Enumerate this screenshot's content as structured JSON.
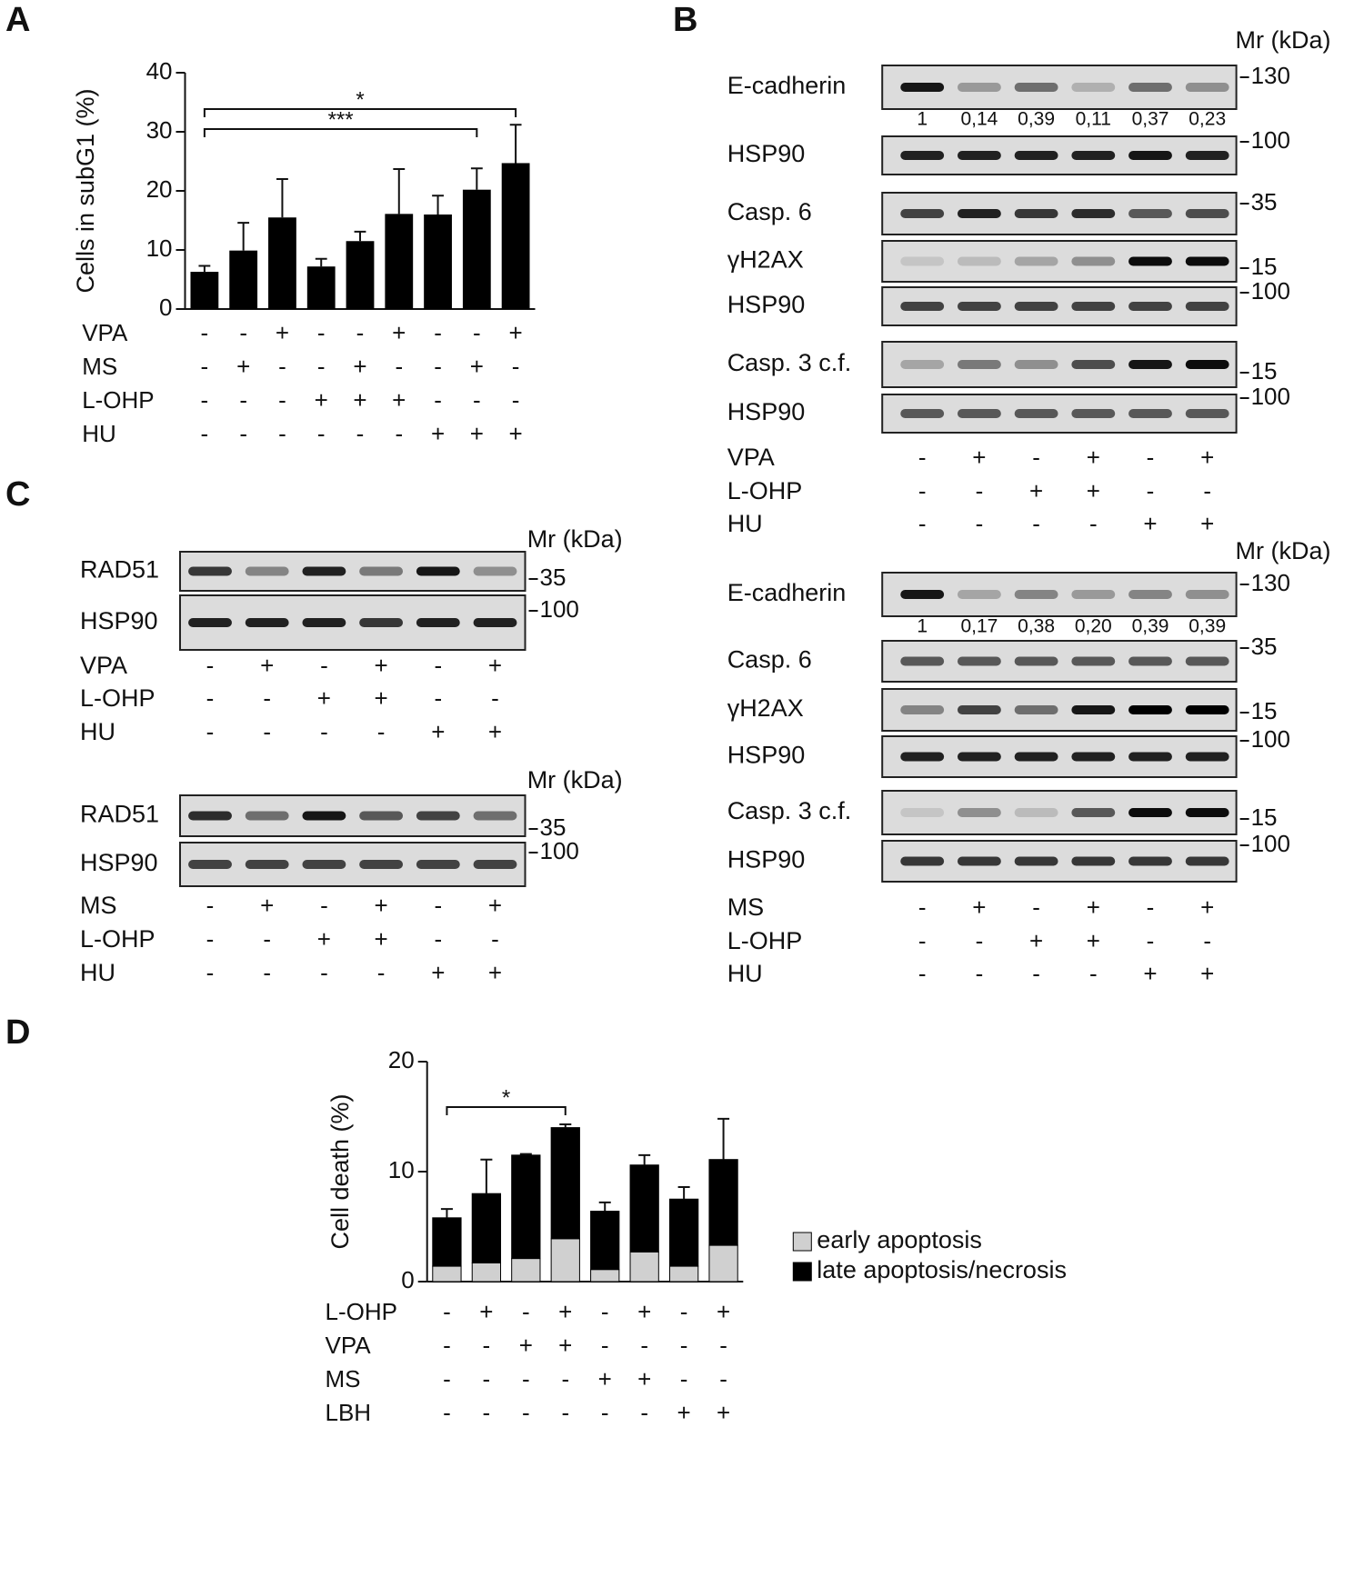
{
  "panel_labels": [
    "A",
    "B",
    "C",
    "D"
  ],
  "chart_data": [
    {
      "type": "bar",
      "y_label": "Cells in subG1 (%)",
      "ylim": [
        0,
        40
      ],
      "yticks": [
        0,
        10,
        20,
        30,
        40
      ],
      "color": "#000000",
      "values": [
        6.3,
        9.9,
        15.5,
        7.2,
        11.5,
        16.1,
        16.0,
        20.2,
        24.7
      ],
      "errors": [
        1.0,
        4.7,
        6.5,
        1.3,
        1.6,
        7.6,
        3.2,
        3.6,
        6.5
      ],
      "annotations": [
        "*",
        "***"
      ],
      "conditions": [
        {
          "name": "VPA",
          "marks": [
            "-",
            "-",
            "+",
            "-",
            "-",
            "+",
            "-",
            "-",
            "+"
          ]
        },
        {
          "name": "MS",
          "marks": [
            "-",
            "+",
            "-",
            "-",
            "+",
            "-",
            "-",
            "+",
            "-"
          ]
        },
        {
          "name": "L-OHP",
          "marks": [
            "-",
            "-",
            "-",
            "+",
            "+",
            "+",
            "-",
            "-",
            "-"
          ]
        },
        {
          "name": "HU",
          "marks": [
            "-",
            "-",
            "-",
            "-",
            "-",
            "-",
            "+",
            "+",
            "+"
          ]
        }
      ]
    },
    {
      "type": "stacked_bar",
      "y_label": "Cell death (%)",
      "ylim": [
        0,
        20
      ],
      "yticks": [
        0,
        10,
        20
      ],
      "legend": "right",
      "series": [
        {
          "name": "early apoptosis",
          "color": "#d0d0d0",
          "values": [
            1.4,
            1.7,
            2.1,
            3.9,
            1.1,
            2.7,
            1.4,
            3.3
          ]
        },
        {
          "name": "late apoptosis/necrosis",
          "color": "#000000",
          "values": [
            4.4,
            6.3,
            9.4,
            10.1,
            5.3,
            7.9,
            6.1,
            7.8
          ],
          "errors": [
            0.8,
            3.1,
            0.1,
            0.3,
            0.8,
            0.9,
            1.1,
            3.7
          ]
        }
      ],
      "annotations": [
        "*"
      ],
      "conditions": [
        {
          "name": "L-OHP",
          "marks": [
            "-",
            "+",
            "-",
            "+",
            "-",
            "+",
            "-",
            "+"
          ]
        },
        {
          "name": "VPA",
          "marks": [
            "-",
            "-",
            "+",
            "+",
            "-",
            "-",
            "-",
            "-"
          ]
        },
        {
          "name": "MS",
          "marks": [
            "-",
            "-",
            "-",
            "-",
            "+",
            "+",
            "-",
            "-"
          ]
        },
        {
          "name": "LBH",
          "marks": [
            "-",
            "-",
            "-",
            "-",
            "-",
            "-",
            "+",
            "+"
          ]
        }
      ]
    }
  ],
  "blots": [
    {
      "mr_label": "Mr (kDa)",
      "rows": [
        {
          "label": "E-cadherin",
          "marker": 130,
          "quant": [
            "1",
            "0,14",
            "0,39",
            "0,11",
            "0,37",
            "0,23"
          ]
        },
        {
          "label": "HSP90",
          "marker": 100
        },
        {
          "label": "Casp. 6",
          "marker": 35
        },
        {
          "label": "γH2AX",
          "marker": 15
        },
        {
          "label": "HSP90",
          "marker": 100
        },
        {
          "label": "Casp. 3 c.f.",
          "marker": 15
        },
        {
          "label": "HSP90",
          "marker": 100
        }
      ],
      "conditions": [
        {
          "name": "VPA",
          "marks": [
            "-",
            "+",
            "-",
            "+",
            "-",
            "+"
          ]
        },
        {
          "name": "L-OHP",
          "marks": [
            "-",
            "-",
            "+",
            "+",
            "-",
            "-"
          ]
        },
        {
          "name": "HU",
          "marks": [
            "-",
            "-",
            "-",
            "-",
            "+",
            "+"
          ]
        }
      ]
    },
    {
      "mr_label": "Mr (kDa)",
      "rows": [
        {
          "label": "E-cadherin",
          "marker": 130,
          "quant": [
            "1",
            "0,17",
            "0,38",
            "0,20",
            "0,39",
            "0,39"
          ]
        },
        {
          "label": "Casp. 6",
          "marker": 35
        },
        {
          "label": "γH2AX",
          "marker": 15
        },
        {
          "label": "HSP90",
          "marker": 100
        },
        {
          "label": "Casp. 3 c.f.",
          "marker": 15
        },
        {
          "label": "HSP90",
          "marker": 100
        }
      ],
      "conditions": [
        {
          "name": "MS",
          "marks": [
            "-",
            "+",
            "-",
            "+",
            "-",
            "+"
          ]
        },
        {
          "name": "L-OHP",
          "marks": [
            "-",
            "-",
            "+",
            "+",
            "-",
            "-"
          ]
        },
        {
          "name": "HU",
          "marks": [
            "-",
            "-",
            "-",
            "-",
            "+",
            "+"
          ]
        }
      ]
    },
    {
      "mr_label": "Mr (kDa)",
      "rows": [
        {
          "label": "RAD51",
          "marker": 35
        },
        {
          "label": "HSP90",
          "marker": 100
        }
      ],
      "conditions": [
        {
          "name": "VPA",
          "marks": [
            "-",
            "+",
            "-",
            "+",
            "-",
            "+"
          ]
        },
        {
          "name": "L-OHP",
          "marks": [
            "-",
            "-",
            "+",
            "+",
            "-",
            "-"
          ]
        },
        {
          "name": "HU",
          "marks": [
            "-",
            "-",
            "-",
            "-",
            "+",
            "+"
          ]
        }
      ]
    },
    {
      "mr_label": "Mr (kDa)",
      "rows": [
        {
          "label": "RAD51",
          "marker": 35
        },
        {
          "label": "HSP90",
          "marker": 100
        }
      ],
      "conditions": [
        {
          "name": "MS",
          "marks": [
            "-",
            "+",
            "-",
            "+",
            "-",
            "+"
          ]
        },
        {
          "name": "L-OHP",
          "marks": [
            "-",
            "-",
            "+",
            "+",
            "-",
            "-"
          ]
        },
        {
          "name": "HU",
          "marks": [
            "-",
            "-",
            "-",
            "-",
            "+",
            "+"
          ]
        }
      ]
    }
  ]
}
